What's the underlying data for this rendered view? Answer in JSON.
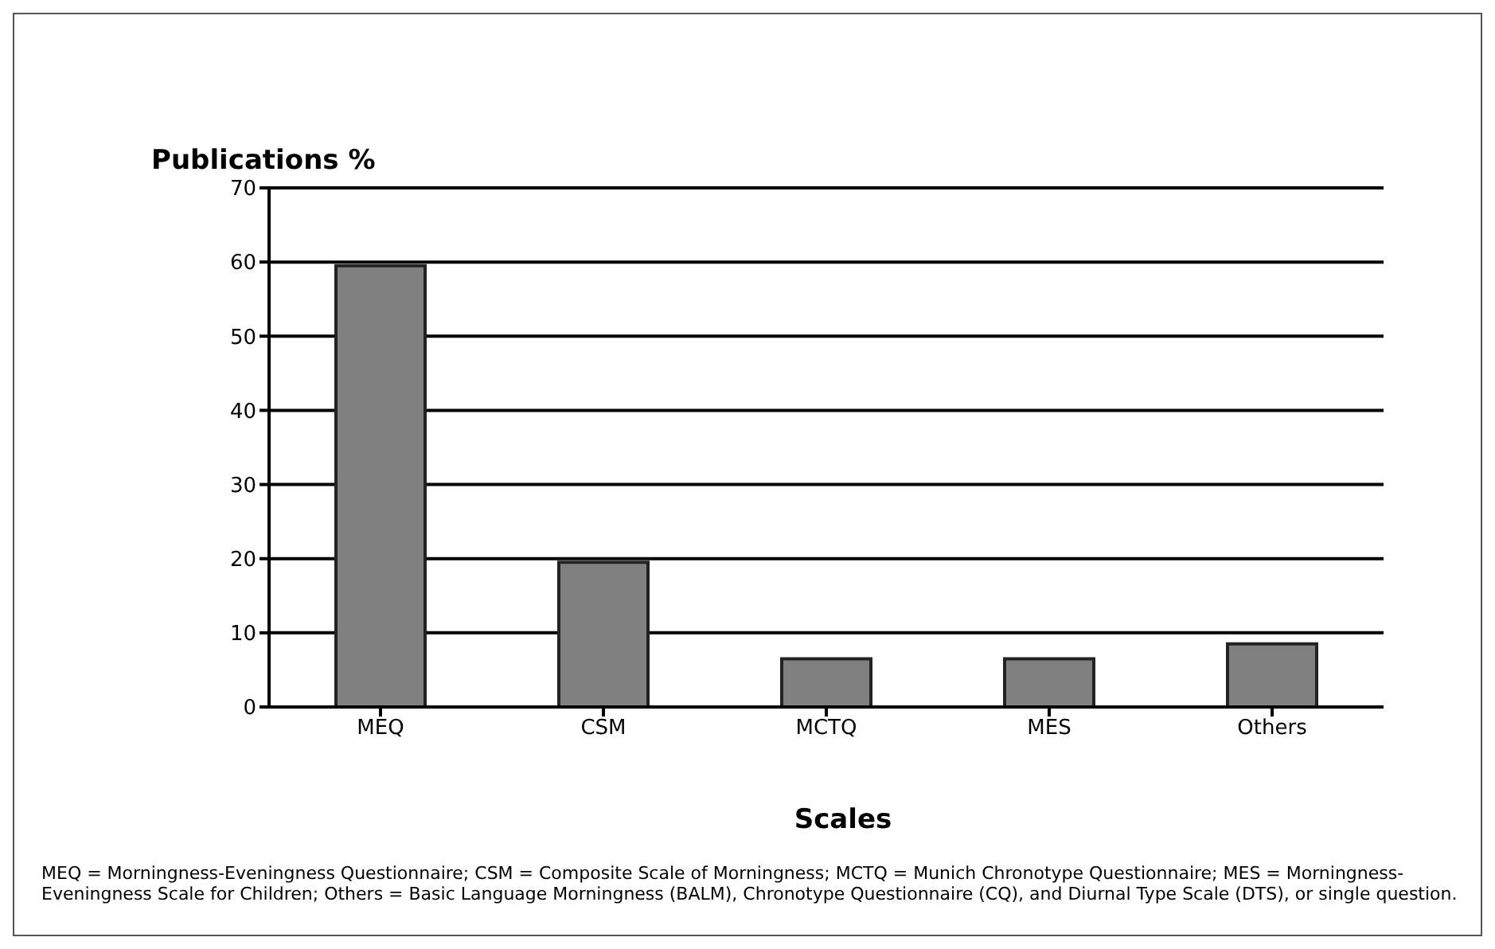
{
  "chart_data": {
    "type": "bar",
    "ylabel": "Publications %",
    "xlabel": "Scales",
    "categories": [
      "MEQ",
      "CSM",
      "MCTQ",
      "MES",
      "Others"
    ],
    "values": [
      59.5,
      19.5,
      6.5,
      6.5,
      8.5
    ],
    "color": "#808080",
    "ylim": [
      0,
      70
    ],
    "yticks": [
      0,
      10,
      20,
      30,
      40,
      50,
      60,
      70
    ],
    "grid": "y",
    "annotations": [
      "MEQ = Morningness-Eveningness Questionnaire; CSM = Composite Scale of Morningness; MCTQ = Munich Chronotype Questionnaire; MES = Morningness-Eveningness Scale for Children; Others = Basic Language Morningness (BALM), Chronotype Questionnaire (CQ), and Diurnal Type Scale (DTS), or single question."
    ]
  }
}
